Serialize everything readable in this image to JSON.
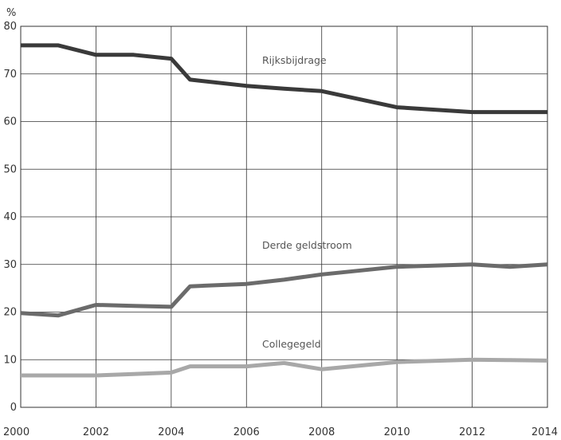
{
  "chart_data": {
    "type": "line",
    "title": "",
    "xlabel": "",
    "ylabel": "%",
    "xlim": [
      2000,
      2014
    ],
    "ylim": [
      0,
      80
    ],
    "x_ticks": [
      "2000",
      "2002",
      "2004",
      "2006",
      "2008",
      "2010",
      "2012",
      "2014"
    ],
    "y_ticks": [
      "0",
      "10",
      "20",
      "30",
      "40",
      "50",
      "60",
      "70",
      "80"
    ],
    "grid": true,
    "series": [
      {
        "name": "Rijksbijdrage",
        "color": "#3a3a3a",
        "points": [
          [
            2000,
            76
          ],
          [
            2001,
            76
          ],
          [
            2002,
            74
          ],
          [
            2003,
            74
          ],
          [
            2004,
            73.2
          ],
          [
            2004.5,
            68.8
          ],
          [
            2006,
            67.5
          ],
          [
            2007,
            66.9
          ],
          [
            2008,
            66.4
          ],
          [
            2010,
            63
          ],
          [
            2012,
            62
          ],
          [
            2013,
            62
          ],
          [
            2014,
            62
          ]
        ]
      },
      {
        "name": "Derde geldstroom",
        "color": "#6b6b6b",
        "points": [
          [
            2000,
            19.8
          ],
          [
            2001,
            19.3
          ],
          [
            2002,
            21.5
          ],
          [
            2003,
            21.3
          ],
          [
            2004,
            21.1
          ],
          [
            2004.5,
            25.4
          ],
          [
            2006,
            25.9
          ],
          [
            2007,
            26.8
          ],
          [
            2008,
            27.9
          ],
          [
            2010,
            29.5
          ],
          [
            2012,
            30
          ],
          [
            2013,
            29.5
          ],
          [
            2014,
            30
          ]
        ]
      },
      {
        "name": "Collegegeld",
        "color": "#a8a8a8",
        "points": [
          [
            2000,
            6.7
          ],
          [
            2001,
            6.7
          ],
          [
            2002,
            6.7
          ],
          [
            2003,
            7
          ],
          [
            2004,
            7.3
          ],
          [
            2004.5,
            8.6
          ],
          [
            2006,
            8.6
          ],
          [
            2007,
            9.3
          ],
          [
            2008,
            8
          ],
          [
            2010,
            9.5
          ],
          [
            2012,
            10
          ],
          [
            2013,
            9.9
          ],
          [
            2014,
            9.8
          ]
        ]
      }
    ]
  }
}
